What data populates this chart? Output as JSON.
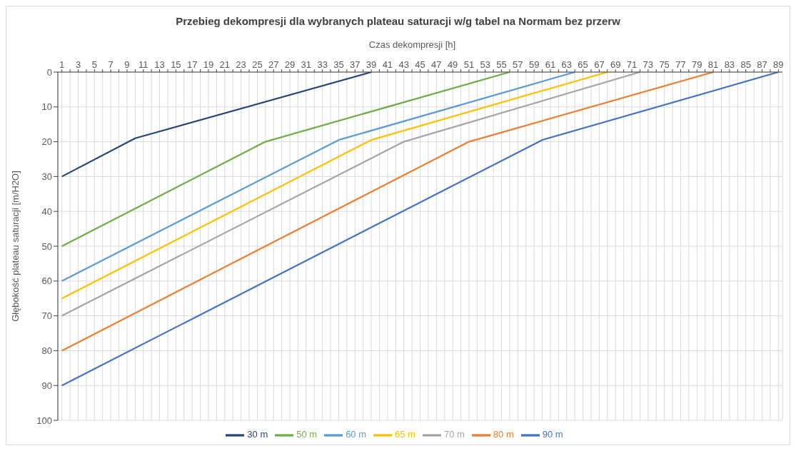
{
  "chart_data": {
    "type": "line",
    "title": "Przebieg dekompresji dla wybranych plateau saturacji w/g tabel na Normam bez przerw",
    "xlabel": "Czas dekompresji [h]",
    "ylabel": "Głębokość plateau saturacji [m/H2O]",
    "xlim": [
      0.5,
      89.5
    ],
    "xticks": [
      1,
      {
        "value": 2,
        "label": null
      },
      3,
      {
        "value": 4,
        "label": null
      },
      5,
      {
        "value": 6,
        "label": null
      },
      7,
      {
        "value": 8,
        "label": null
      },
      9,
      {
        "value": 10,
        "label": null
      },
      11,
      {
        "value": 12,
        "label": null
      },
      13,
      {
        "value": 14,
        "label": null
      },
      15,
      {
        "value": 16,
        "label": null
      },
      17,
      {
        "value": 18,
        "label": null
      },
      19,
      {
        "value": 20,
        "label": null
      },
      21,
      {
        "value": 22,
        "label": null
      },
      23,
      {
        "value": 24,
        "label": null
      },
      25,
      {
        "value": 26,
        "label": null
      },
      27,
      {
        "value": 28,
        "label": null
      },
      29,
      {
        "value": 30,
        "label": null
      },
      31,
      {
        "value": 32,
        "label": null
      },
      33,
      {
        "value": 34,
        "label": null
      },
      35,
      {
        "value": 36,
        "label": null
      },
      37,
      {
        "value": 38,
        "label": null
      },
      39,
      {
        "value": 40,
        "label": null
      },
      41,
      {
        "value": 42,
        "label": null
      },
      43,
      {
        "value": 44,
        "label": null
      },
      45,
      {
        "value": 46,
        "label": null
      },
      47,
      {
        "value": 48,
        "label": null
      },
      49,
      {
        "value": 50,
        "label": null
      },
      51,
      {
        "value": 52,
        "label": null
      },
      53,
      {
        "value": 54,
        "label": null
      },
      55,
      {
        "value": 56,
        "label": null
      },
      57,
      {
        "value": 58,
        "label": null
      },
      59,
      {
        "value": 60,
        "label": null
      },
      61,
      {
        "value": 62,
        "label": null
      },
      63,
      {
        "value": 64,
        "label": null
      },
      65,
      {
        "value": 66,
        "label": null
      },
      67,
      {
        "value": 68,
        "label": null
      },
      69,
      {
        "value": 70,
        "label": null
      },
      71,
      {
        "value": 72,
        "label": null
      },
      73,
      {
        "value": 74,
        "label": null
      },
      75,
      {
        "value": 76,
        "label": null
      },
      77,
      {
        "value": 78,
        "label": null
      },
      79,
      {
        "value": 80,
        "label": null
      },
      81,
      {
        "value": 82,
        "label": null
      },
      83,
      {
        "value": 84,
        "label": null
      },
      85,
      {
        "value": 86,
        "label": null
      },
      87,
      {
        "value": 88,
        "label": null
      },
      89
    ],
    "ylim": [
      100,
      0
    ],
    "yticks": [
      0,
      10,
      20,
      30,
      40,
      50,
      60,
      70,
      80,
      90,
      100
    ],
    "grid": true,
    "legend": "bottom",
    "marker": "none",
    "line_style": "solid",
    "series": [
      {
        "name": "90 m",
        "color": "#4472c4",
        "x": [
          1,
          60,
          89
        ],
        "values": [
          90,
          19.5,
          0
        ]
      },
      {
        "name": "80 m",
        "color": "#ed7d31",
        "x": [
          1,
          51,
          81
        ],
        "values": [
          80,
          20,
          0
        ]
      },
      {
        "name": "70 m",
        "color": "#a5a5a5",
        "x": [
          1,
          43,
          72
        ],
        "values": [
          70,
          20,
          0
        ]
      },
      {
        "name": "65 m",
        "color": "#ffc000",
        "x": [
          1,
          39,
          68
        ],
        "values": [
          65,
          19.5,
          0
        ]
      },
      {
        "name": "60 m",
        "color": "#5b9bd5",
        "x": [
          1,
          35,
          64
        ],
        "values": [
          60,
          19.5,
          0
        ]
      },
      {
        "name": "50 m",
        "color": "#70ad47",
        "x": [
          1,
          26,
          56
        ],
        "values": [
          50,
          20,
          0
        ]
      },
      {
        "name": "30 m",
        "color": "#264478",
        "x": [
          1,
          10,
          39
        ],
        "values": [
          30,
          19,
          0
        ]
      }
    ]
  }
}
